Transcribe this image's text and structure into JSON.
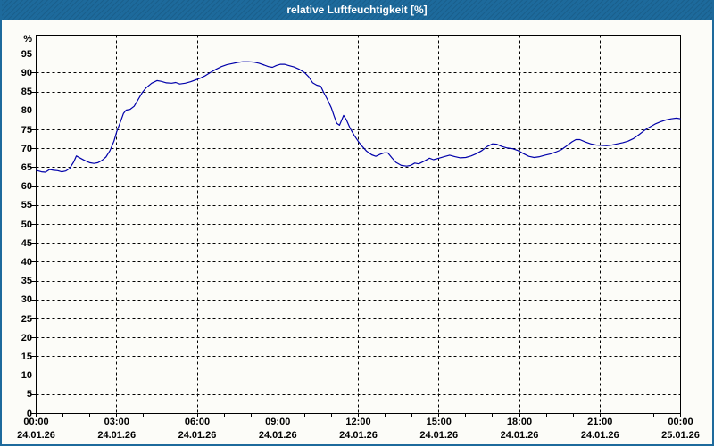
{
  "window": {
    "title": "relative Luftfeuchtigkeit [%]"
  },
  "colors": {
    "titlebar": "#1d6a9c",
    "border": "#1d6a9c",
    "background": "#fcfcf8",
    "text": "#000000",
    "grid": "#000000",
    "curve": "#0000aa"
  },
  "chart_data": {
    "type": "line",
    "title": "relative Luftfeuchtigkeit [%]",
    "ylabel": "%",
    "ylim": [
      0,
      100
    ],
    "y_ticks": [
      0,
      5,
      10,
      15,
      20,
      25,
      30,
      35,
      40,
      45,
      50,
      55,
      60,
      65,
      70,
      75,
      80,
      85,
      90,
      95
    ],
    "grid": "dashed",
    "legend": "none",
    "x_axis": {
      "hours_start": 0,
      "hours_end": 24,
      "major_step_hours": 3,
      "minor_step_hours": 1,
      "major_labels": [
        {
          "time": "00:00",
          "date": "24.01.26"
        },
        {
          "time": "03:00",
          "date": "24.01.26"
        },
        {
          "time": "06:00",
          "date": "24.01.26"
        },
        {
          "time": "09:00",
          "date": "24.01.26"
        },
        {
          "time": "12:00",
          "date": "24.01.26"
        },
        {
          "time": "15:00",
          "date": "24.01.26"
        },
        {
          "time": "18:00",
          "date": "24.01.26"
        },
        {
          "time": "21:00",
          "date": "24.01.26"
        },
        {
          "time": "00:00",
          "date": "25.01.26"
        }
      ]
    },
    "series": [
      {
        "name": "relative Luftfeuchtigkeit",
        "color": "#0000aa",
        "points": [
          [
            0,
            64.3
          ],
          [
            0.2,
            63.9
          ],
          [
            0.35,
            63.8
          ],
          [
            0.5,
            64.5
          ],
          [
            0.65,
            64.3
          ],
          [
            0.8,
            64.2
          ],
          [
            0.95,
            63.9
          ],
          [
            1.1,
            64.1
          ],
          [
            1.25,
            64.8
          ],
          [
            1.4,
            66.5
          ],
          [
            1.5,
            68.1
          ],
          [
            1.65,
            67.5
          ],
          [
            1.8,
            66.9
          ],
          [
            2.0,
            66.3
          ],
          [
            2.15,
            66.1
          ],
          [
            2.3,
            66.3
          ],
          [
            2.45,
            66.9
          ],
          [
            2.6,
            67.8
          ],
          [
            2.75,
            69.5
          ],
          [
            2.9,
            72.0
          ],
          [
            3.0,
            74.5
          ],
          [
            3.15,
            77.3
          ],
          [
            3.25,
            79.3
          ],
          [
            3.35,
            80.2
          ],
          [
            3.5,
            80.4
          ],
          [
            3.65,
            81.2
          ],
          [
            3.8,
            83.0
          ],
          [
            3.95,
            84.8
          ],
          [
            4.1,
            86.1
          ],
          [
            4.3,
            87.3
          ],
          [
            4.5,
            88.0
          ],
          [
            4.65,
            87.8
          ],
          [
            4.85,
            87.4
          ],
          [
            5.05,
            87.3
          ],
          [
            5.2,
            87.5
          ],
          [
            5.35,
            87.1
          ],
          [
            5.55,
            87.3
          ],
          [
            5.75,
            87.7
          ],
          [
            5.95,
            88.2
          ],
          [
            6.1,
            88.6
          ],
          [
            6.3,
            89.3
          ],
          [
            6.5,
            90.2
          ],
          [
            6.7,
            91.0
          ],
          [
            6.9,
            91.7
          ],
          [
            7.1,
            92.2
          ],
          [
            7.3,
            92.5
          ],
          [
            7.5,
            92.8
          ],
          [
            7.7,
            93.0
          ],
          [
            7.9,
            93.0
          ],
          [
            8.1,
            92.9
          ],
          [
            8.3,
            92.6
          ],
          [
            8.5,
            92.1
          ],
          [
            8.65,
            91.7
          ],
          [
            8.8,
            91.5
          ],
          [
            8.95,
            92.0
          ],
          [
            9.1,
            92.3
          ],
          [
            9.25,
            92.3
          ],
          [
            9.4,
            92.0
          ],
          [
            9.6,
            91.6
          ],
          [
            9.8,
            91.0
          ],
          [
            10.0,
            90.1
          ],
          [
            10.15,
            89.0
          ],
          [
            10.3,
            87.4
          ],
          [
            10.45,
            86.8
          ],
          [
            10.6,
            86.5
          ],
          [
            10.7,
            85.0
          ],
          [
            10.85,
            83.0
          ],
          [
            11.0,
            80.7
          ],
          [
            11.1,
            78.6
          ],
          [
            11.2,
            76.7
          ],
          [
            11.3,
            76.2
          ],
          [
            11.45,
            78.8
          ],
          [
            11.55,
            77.7
          ],
          [
            11.7,
            75.3
          ],
          [
            11.85,
            73.5
          ],
          [
            12.0,
            71.9
          ],
          [
            12.15,
            70.6
          ],
          [
            12.3,
            69.4
          ],
          [
            12.5,
            68.4
          ],
          [
            12.65,
            68.0
          ],
          [
            12.8,
            68.5
          ],
          [
            12.95,
            68.9
          ],
          [
            13.1,
            68.9
          ],
          [
            13.25,
            67.6
          ],
          [
            13.4,
            66.4
          ],
          [
            13.6,
            65.6
          ],
          [
            13.8,
            65.4
          ],
          [
            13.95,
            65.6
          ],
          [
            14.1,
            66.2
          ],
          [
            14.25,
            66.0
          ],
          [
            14.45,
            66.7
          ],
          [
            14.65,
            67.5
          ],
          [
            14.8,
            67.1
          ],
          [
            15.0,
            67.5
          ],
          [
            15.2,
            67.9
          ],
          [
            15.4,
            68.3
          ],
          [
            15.6,
            67.9
          ],
          [
            15.8,
            67.6
          ],
          [
            16.0,
            67.7
          ],
          [
            16.2,
            68.1
          ],
          [
            16.4,
            68.7
          ],
          [
            16.6,
            69.5
          ],
          [
            16.8,
            70.6
          ],
          [
            17.0,
            71.3
          ],
          [
            17.15,
            71.2
          ],
          [
            17.35,
            70.6
          ],
          [
            17.55,
            70.2
          ],
          [
            17.75,
            70.0
          ],
          [
            17.95,
            69.5
          ],
          [
            18.15,
            68.7
          ],
          [
            18.35,
            68.0
          ],
          [
            18.55,
            67.7
          ],
          [
            18.75,
            67.9
          ],
          [
            18.95,
            68.3
          ],
          [
            19.15,
            68.6
          ],
          [
            19.35,
            69.1
          ],
          [
            19.55,
            69.7
          ],
          [
            19.75,
            70.7
          ],
          [
            19.95,
            71.8
          ],
          [
            20.1,
            72.4
          ],
          [
            20.25,
            72.4
          ],
          [
            20.45,
            71.8
          ],
          [
            20.65,
            71.3
          ],
          [
            20.85,
            71.0
          ],
          [
            21.05,
            70.9
          ],
          [
            21.25,
            70.8
          ],
          [
            21.45,
            71.0
          ],
          [
            21.65,
            71.3
          ],
          [
            21.85,
            71.6
          ],
          [
            22.05,
            72.0
          ],
          [
            22.25,
            72.7
          ],
          [
            22.45,
            73.7
          ],
          [
            22.65,
            74.8
          ],
          [
            22.85,
            75.7
          ],
          [
            23.05,
            76.5
          ],
          [
            23.25,
            77.1
          ],
          [
            23.45,
            77.6
          ],
          [
            23.65,
            77.9
          ],
          [
            23.85,
            78.1
          ],
          [
            24.0,
            77.9
          ]
        ]
      }
    ]
  }
}
